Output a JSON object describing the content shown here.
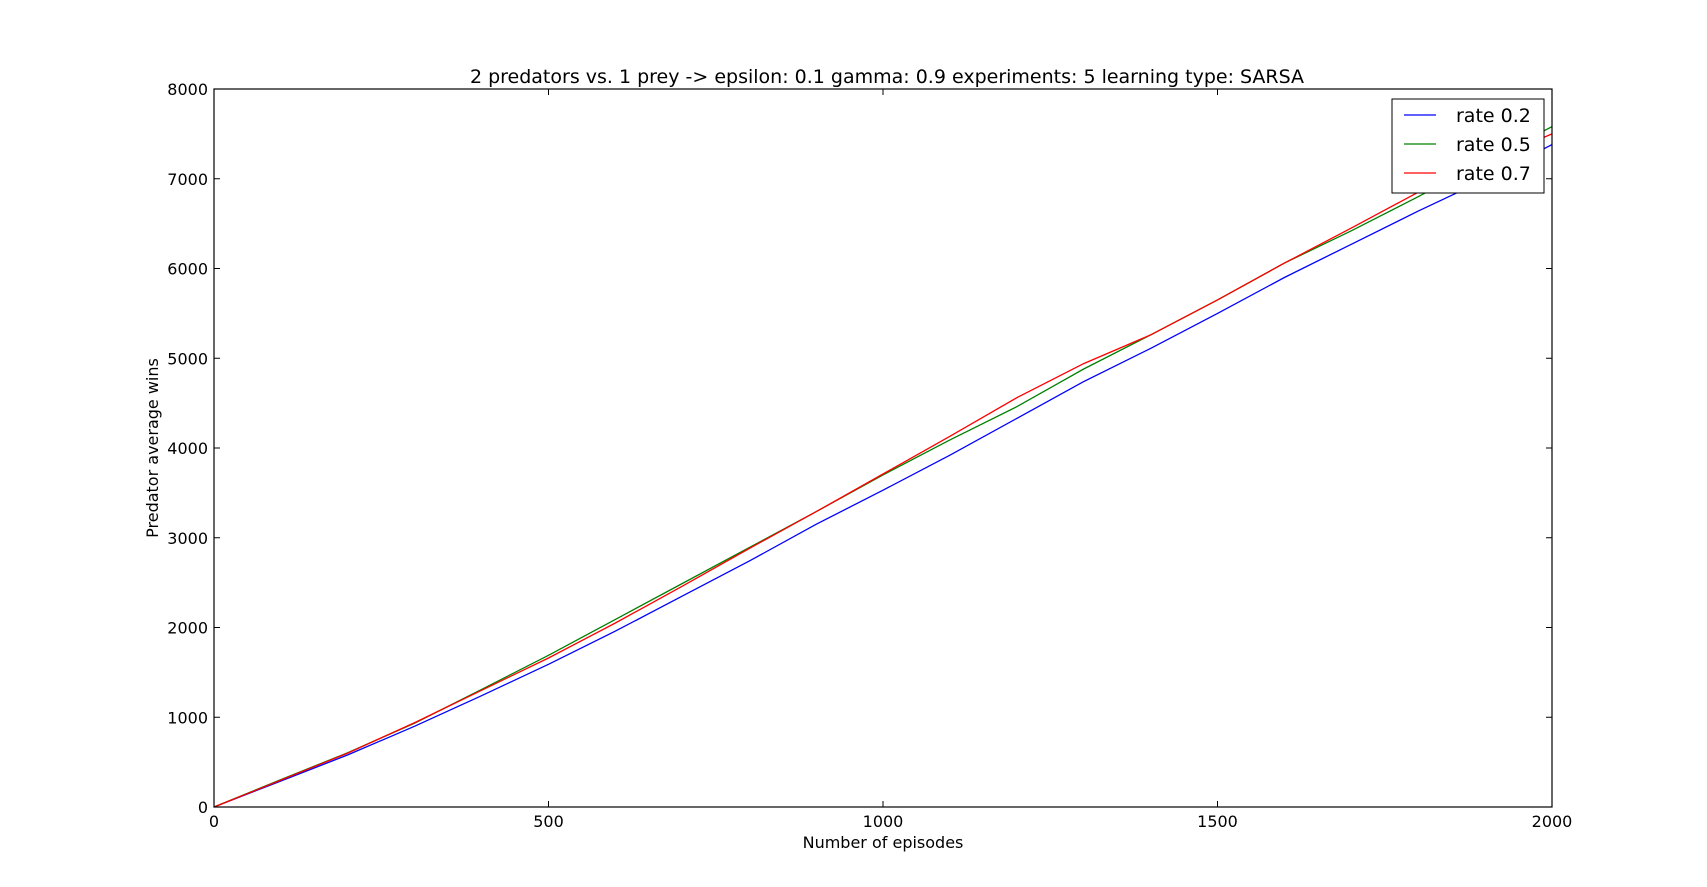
{
  "chart_data": {
    "type": "line",
    "title": "2 predators vs. 1 prey -> epsilon: 0.1 gamma: 0.9 experiments: 5 learning type: SARSA",
    "xlabel": "Number of episodes",
    "ylabel": "Predator average wins",
    "xlim": [
      0,
      2000
    ],
    "ylim": [
      0,
      8000
    ],
    "xticks": [
      0,
      500,
      1000,
      1500,
      2000
    ],
    "yticks": [
      0,
      1000,
      2000,
      3000,
      4000,
      5000,
      6000,
      7000,
      8000
    ],
    "xtick_labels": [
      "0",
      "500",
      "1000",
      "1500",
      "2000"
    ],
    "ytick_labels": [
      "0",
      "1000",
      "2000",
      "3000",
      "4000",
      "5000",
      "6000",
      "7000",
      "8000"
    ],
    "grid": false,
    "legend_position": "top-right",
    "series": [
      {
        "name": "rate 0.2",
        "color": "#0000ff",
        "x": [
          0,
          100,
          200,
          300,
          400,
          500,
          600,
          700,
          800,
          900,
          1000,
          1100,
          1200,
          1300,
          1400,
          1500,
          1600,
          1700,
          1800,
          1900,
          2000
        ],
        "y": [
          0,
          290,
          580,
          900,
          1240,
          1590,
          1960,
          2350,
          2740,
          3150,
          3530,
          3920,
          4330,
          4740,
          5110,
          5500,
          5900,
          6270,
          6640,
          6990,
          7380
        ]
      },
      {
        "name": "rate 0.5",
        "color": "#008000",
        "x": [
          0,
          100,
          200,
          300,
          400,
          500,
          600,
          700,
          800,
          900,
          1000,
          1100,
          1200,
          1300,
          1400,
          1500,
          1600,
          1700,
          1800,
          1900,
          2000
        ],
        "y": [
          0,
          305,
          605,
          935,
          1310,
          1690,
          2090,
          2490,
          2890,
          3290,
          3700,
          4090,
          4460,
          4880,
          5260,
          5650,
          6060,
          6420,
          6800,
          7200,
          7580
        ]
      },
      {
        "name": "rate 0.7",
        "color": "#ff0000",
        "x": [
          0,
          100,
          200,
          300,
          400,
          500,
          600,
          700,
          800,
          900,
          1000,
          1100,
          1200,
          1300,
          1400,
          1500,
          1600,
          1700,
          1800,
          1900,
          2000
        ],
        "y": [
          0,
          300,
          600,
          940,
          1300,
          1660,
          2050,
          2460,
          2880,
          3290,
          3710,
          4130,
          4560,
          4940,
          5260,
          5650,
          6060,
          6450,
          6850,
          7180,
          7500
        ]
      }
    ]
  }
}
